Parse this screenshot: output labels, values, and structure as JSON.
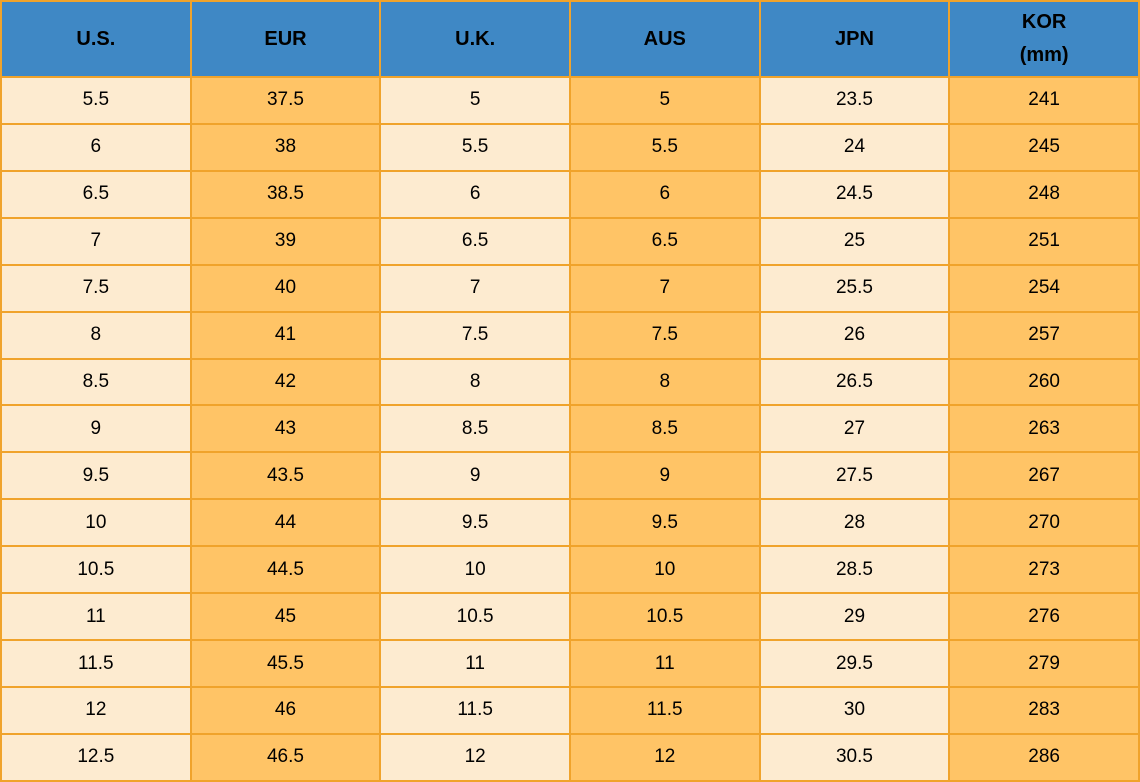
{
  "chart_data": {
    "type": "table",
    "columns": [
      "U.S.",
      "EUR",
      "U.K.",
      "AUS",
      "JPN",
      "KOR\n(mm)"
    ],
    "rows": [
      [
        "5.5",
        "37.5",
        "5",
        "5",
        "23.5",
        "241"
      ],
      [
        "6",
        "38",
        "5.5",
        "5.5",
        "24",
        "245"
      ],
      [
        "6.5",
        "38.5",
        "6",
        "6",
        "24.5",
        "248"
      ],
      [
        "7",
        "39",
        "6.5",
        "6.5",
        "25",
        "251"
      ],
      [
        "7.5",
        "40",
        "7",
        "7",
        "25.5",
        "254"
      ],
      [
        "8",
        "41",
        "7.5",
        "7.5",
        "26",
        "257"
      ],
      [
        "8.5",
        "42",
        "8",
        "8",
        "26.5",
        "260"
      ],
      [
        "9",
        "43",
        "8.5",
        "8.5",
        "27",
        "263"
      ],
      [
        "9.5",
        "43.5",
        "9",
        "9",
        "27.5",
        "267"
      ],
      [
        "10",
        "44",
        "9.5",
        "9.5",
        "28",
        "270"
      ],
      [
        "10.5",
        "44.5",
        "10",
        "10",
        "28.5",
        "273"
      ],
      [
        "11",
        "45",
        "10.5",
        "10.5",
        "29",
        "276"
      ],
      [
        "11.5",
        "45.5",
        "11",
        "11",
        "29.5",
        "279"
      ],
      [
        "12",
        "46",
        "11.5",
        "11.5",
        "30",
        "283"
      ],
      [
        "12.5",
        "46.5",
        "12",
        "12",
        "30.5",
        "286"
      ]
    ],
    "layout": {
      "header_position": "top",
      "column_shading": "alternating cream/orange by column",
      "grid": true
    }
  },
  "colors": {
    "header_bg": "#3F88C5",
    "header_text": "#000000",
    "border": "#F0A32B",
    "cell_cream": "#FDEBD0",
    "cell_orange": "#FFC466",
    "cell_text": "#000000"
  }
}
